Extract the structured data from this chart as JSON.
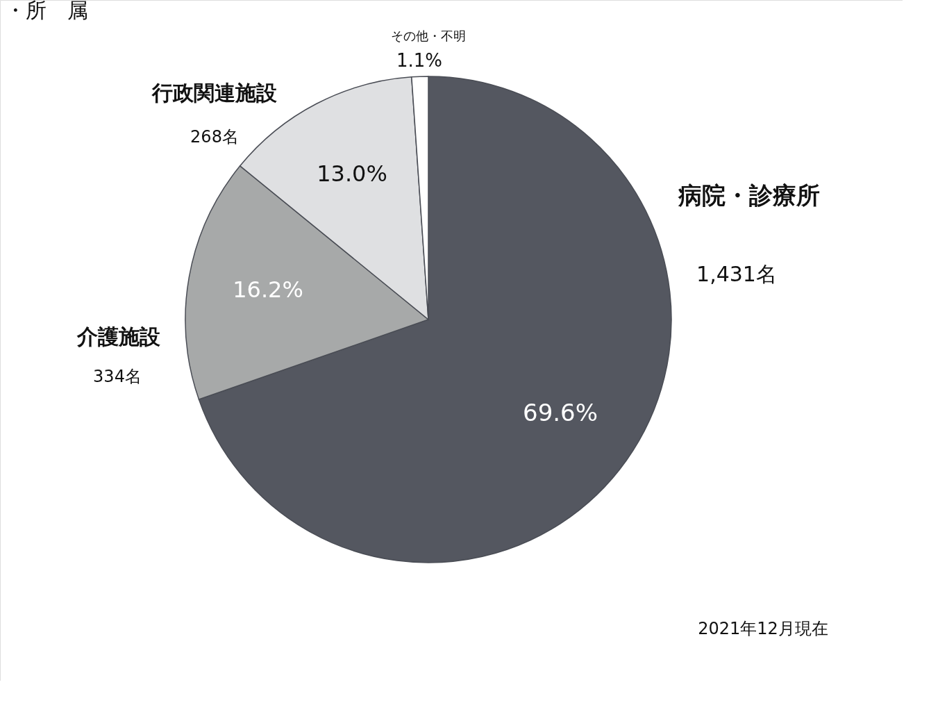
{
  "chart_data": {
    "type": "pie",
    "title": "・所　属",
    "categories": [
      "病院・診療所",
      "介護施設",
      "行政関連施設",
      "その他・不明"
    ],
    "values": [
      69.6,
      16.2,
      13.0,
      1.1
    ],
    "colors": [
      "#545760",
      "#a7a9a9",
      "#dfe0e2",
      "#ffffff"
    ],
    "value_labels": [
      "69.6%",
      "16.2%",
      "13.0%",
      "1.1%"
    ],
    "annotations": [
      "1,431名",
      "334名",
      "268名",
      "2021年12月現在"
    ]
  }
}
